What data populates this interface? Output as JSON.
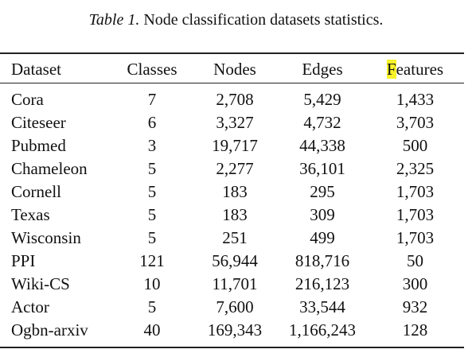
{
  "caption": {
    "label": "Table 1.",
    "text": "Node classification datasets statistics."
  },
  "table": {
    "headers": {
      "dataset": "Dataset",
      "classes": "Classes",
      "nodes": "Nodes",
      "edges": "Edges",
      "features_first": "F",
      "features_rest": "eatures"
    },
    "rows": [
      [
        "Cora",
        "7",
        "2,708",
        "5,429",
        "1,433"
      ],
      [
        "Citeseer",
        "6",
        "3,327",
        "4,732",
        "3,703"
      ],
      [
        "Pubmed",
        "3",
        "19,717",
        "44,338",
        "500"
      ],
      [
        "Chameleon",
        "5",
        "2,277",
        "36,101",
        "2,325"
      ],
      [
        "Cornell",
        "5",
        "183",
        "295",
        "1,703"
      ],
      [
        "Texas",
        "5",
        "183",
        "309",
        "1,703"
      ],
      [
        "Wisconsin",
        "5",
        "251",
        "499",
        "1,703"
      ],
      [
        "PPI",
        "121",
        "56,944",
        "818,716",
        "50"
      ],
      [
        "Wiki-CS",
        "10",
        "11,701",
        "216,123",
        "300"
      ],
      [
        "Actor",
        "5",
        "7,600",
        "33,544",
        "932"
      ],
      [
        "Ogbn-arxiv",
        "40",
        "169,343",
        "1,166,243",
        "128"
      ]
    ]
  },
  "colors": {
    "highlight": "#f7f32a",
    "rule": "#222222"
  }
}
